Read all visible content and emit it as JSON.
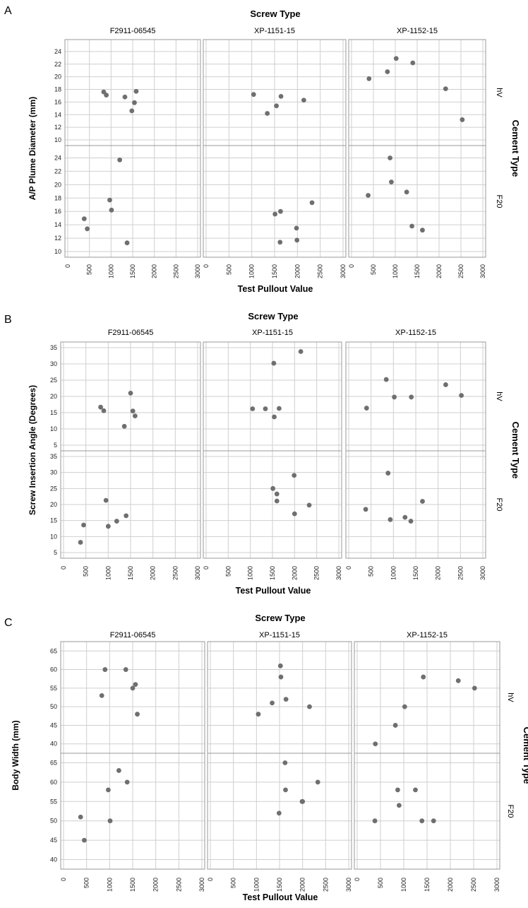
{
  "panels": [
    {
      "letter": "A",
      "top_title": "Screw Type",
      "side_title": "Cement Type",
      "columns": [
        "F2911-06545",
        "XP-1151-15",
        "XP-1152-15"
      ],
      "rows": [
        "hV",
        "F20"
      ],
      "chart_data": {
        "type": "scatter",
        "ylabel": "A/P Plume Diameter (mm)",
        "xlabel": "Test Pullout Value",
        "xlim": [
          0,
          3000
        ],
        "xticks": [
          0,
          500,
          1000,
          1500,
          2000,
          2500,
          3000
        ],
        "ylim": [
          10,
          25
        ],
        "yticks": [
          10,
          12,
          14,
          16,
          18,
          20,
          22,
          24
        ],
        "grid": true,
        "cells": [
          {
            "column": "F2911-06545",
            "row": "hV",
            "points": [
              [
                830,
                17.6
              ],
              [
                890,
                17.1
              ],
              [
                1320,
                16.8
              ],
              [
                1480,
                14.6
              ],
              [
                1540,
                15.9
              ],
              [
                1580,
                17.7
              ]
            ]
          },
          {
            "column": "XP-1151-15",
            "row": "hV",
            "points": [
              [
                1040,
                17.2
              ],
              [
                1340,
                14.2
              ],
              [
                1540,
                15.4
              ],
              [
                1640,
                16.9
              ],
              [
                2140,
                16.3
              ]
            ]
          },
          {
            "column": "XP-1152-15",
            "row": "hV",
            "points": [
              [
                400,
                19.7
              ],
              [
                820,
                20.8
              ],
              [
                1020,
                22.9
              ],
              [
                1400,
                22.2
              ],
              [
                2150,
                18.1
              ],
              [
                2530,
                13.2
              ]
            ]
          },
          {
            "column": "F2911-06545",
            "row": "F20",
            "points": [
              [
                380,
                14.9
              ],
              [
                450,
                13.4
              ],
              [
                970,
                17.7
              ],
              [
                1010,
                16.2
              ],
              [
                1200,
                23.7
              ],
              [
                1370,
                11.3
              ]
            ]
          },
          {
            "column": "XP-1151-15",
            "row": "F20",
            "points": [
              [
                1510,
                15.6
              ],
              [
                1630,
                16.0
              ],
              [
                1620,
                11.4
              ],
              [
                1980,
                13.5
              ],
              [
                1990,
                11.7
              ],
              [
                2320,
                17.3
              ]
            ]
          },
          {
            "column": "XP-1152-15",
            "row": "F20",
            "points": [
              [
                380,
                18.4
              ],
              [
                880,
                24.0
              ],
              [
                910,
                20.4
              ],
              [
                1260,
                18.9
              ],
              [
                1380,
                13.8
              ],
              [
                1620,
                13.2
              ]
            ]
          }
        ]
      }
    },
    {
      "letter": "B",
      "top_title": "Screw Type",
      "side_title": "Cement Type",
      "columns": [
        "F2911-06545",
        "XP-1151-15",
        "XP-1152-15"
      ],
      "rows": [
        "hV",
        "F20"
      ],
      "chart_data": {
        "type": "scatter",
        "ylabel": "Screw Insertion Angle (Degrees)",
        "xlabel": "Test Pullout Value",
        "xlim": [
          0,
          3000
        ],
        "xticks": [
          0,
          500,
          1000,
          1500,
          2000,
          2500,
          3000
        ],
        "ylim": [
          5,
          35
        ],
        "yticks": [
          5,
          10,
          15,
          20,
          25,
          30,
          35
        ],
        "grid": true,
        "cells": [
          {
            "column": "F2911-06545",
            "row": "hV",
            "points": [
              [
                830,
                16.7
              ],
              [
                900,
                15.6
              ],
              [
                1360,
                10.8
              ],
              [
                1500,
                21.0
              ],
              [
                1550,
                15.5
              ],
              [
                1600,
                14.0
              ]
            ]
          },
          {
            "column": "XP-1151-15",
            "row": "hV",
            "points": [
              [
                1050,
                16.2
              ],
              [
                1340,
                16.2
              ],
              [
                1530,
                30.2
              ],
              [
                1540,
                13.7
              ],
              [
                1650,
                16.3
              ],
              [
                2140,
                33.8
              ]
            ]
          },
          {
            "column": "XP-1152-15",
            "row": "hV",
            "points": [
              [
                400,
                16.4
              ],
              [
                840,
                25.2
              ],
              [
                1020,
                19.8
              ],
              [
                1400,
                19.8
              ],
              [
                2170,
                23.6
              ],
              [
                2520,
                20.3
              ]
            ]
          },
          {
            "column": "F2911-06545",
            "row": "F20",
            "points": [
              [
                380,
                8.2
              ],
              [
                450,
                13.6
              ],
              [
                950,
                21.3
              ],
              [
                1000,
                13.2
              ],
              [
                1190,
                14.8
              ],
              [
                1400,
                16.5
              ]
            ]
          },
          {
            "column": "XP-1151-15",
            "row": "F20",
            "points": [
              [
                1510,
                25.0
              ],
              [
                1600,
                23.3
              ],
              [
                1600,
                21.1
              ],
              [
                1990,
                29.1
              ],
              [
                2000,
                17.1
              ],
              [
                2330,
                19.8
              ]
            ]
          },
          {
            "column": "XP-1152-15",
            "row": "F20",
            "points": [
              [
                380,
                18.5
              ],
              [
                880,
                29.8
              ],
              [
                930,
                15.3
              ],
              [
                1260,
                16.0
              ],
              [
                1390,
                14.8
              ],
              [
                1650,
                21.0
              ]
            ]
          }
        ]
      }
    },
    {
      "letter": "C",
      "top_title": "Screw Type",
      "side_title": "Cement Type",
      "columns": [
        "F2911-06545",
        "XP-1151-15",
        "XP-1152-15"
      ],
      "rows": [
        "hV",
        "F20"
      ],
      "chart_data": {
        "type": "scatter",
        "ylabel": "Body Width (mm)",
        "xlabel": "Test Pullout Value",
        "xlim": [
          0,
          3000
        ],
        "xticks": [
          0,
          500,
          1000,
          1500,
          2000,
          2500,
          3000
        ],
        "ylim": [
          39,
          66
        ],
        "yticks": [
          40,
          45,
          50,
          55,
          60,
          65
        ],
        "grid": true,
        "cells": [
          {
            "column": "F2911-06545",
            "row": "hV",
            "points": [
              [
                830,
                53
              ],
              [
                900,
                60
              ],
              [
                1350,
                60
              ],
              [
                1500,
                55
              ],
              [
                1560,
                56
              ],
              [
                1600,
                48
              ]
            ]
          },
          {
            "column": "XP-1151-15",
            "row": "hV",
            "points": [
              [
                1040,
                48
              ],
              [
                1340,
                51
              ],
              [
                1520,
                61
              ],
              [
                1530,
                58
              ],
              [
                1640,
                52
              ],
              [
                2150,
                50
              ]
            ]
          },
          {
            "column": "XP-1152-15",
            "row": "hV",
            "points": [
              [
                390,
                40
              ],
              [
                820,
                45
              ],
              [
                1020,
                50
              ],
              [
                1420,
                58
              ],
              [
                2170,
                57
              ],
              [
                2520,
                55
              ]
            ]
          },
          {
            "column": "F2911-06545",
            "row": "F20",
            "points": [
              [
                370,
                51
              ],
              [
                450,
                45
              ],
              [
                970,
                58
              ],
              [
                1010,
                50
              ],
              [
                1200,
                63
              ],
              [
                1380,
                60
              ]
            ]
          },
          {
            "column": "XP-1151-15",
            "row": "F20",
            "points": [
              [
                1490,
                52
              ],
              [
                1630,
                58
              ],
              [
                1620,
                65
              ],
              [
                1990,
                55
              ],
              [
                2000,
                55
              ],
              [
                2330,
                60
              ]
            ]
          },
          {
            "column": "XP-1152-15",
            "row": "F20",
            "points": [
              [
                380,
                50
              ],
              [
                870,
                58
              ],
              [
                900,
                54
              ],
              [
                1250,
                58
              ],
              [
                1390,
                50
              ],
              [
                1640,
                50
              ]
            ]
          }
        ]
      }
    }
  ]
}
